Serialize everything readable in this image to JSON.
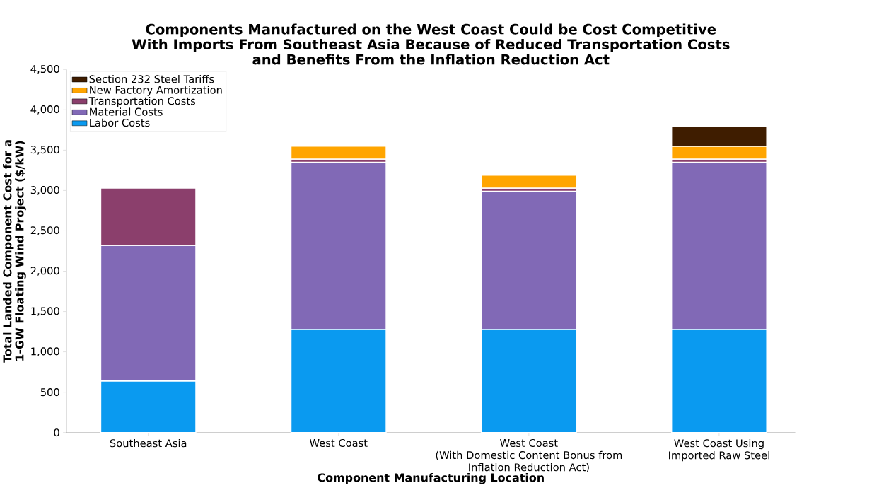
{
  "chart_data": {
    "type": "bar",
    "stacked": true,
    "title": "Components Manufactured on the West Coast Could be Cost Competitive\nWith Imports From Southeast Asia Because of Reduced Transportation Costs\nand Benefits From the Inflation Reduction Act",
    "xlabel": "Component Manufacturing Location",
    "ylabel": "Total Landed Component Cost for a\n1-GW Floating Wind Project ($/kW)",
    "categories": [
      "Southeast Asia",
      "West Coast",
      "West Coast\n(With Domestic Content Bonus from\nInflation Reduction Act)",
      "West Coast Using\nImported Raw Steel"
    ],
    "series": [
      {
        "name": "Labor Costs",
        "color": "#0a9af0",
        "values": [
          640,
          1280,
          1280,
          1280
        ]
      },
      {
        "name": "Material Costs",
        "color": "#8169b6",
        "values": [
          1680,
          2070,
          1710,
          2070
        ]
      },
      {
        "name": "Transportation Costs",
        "color": "#8b3f6c",
        "values": [
          710,
          40,
          40,
          40
        ]
      },
      {
        "name": "New Factory Amortization",
        "color": "#ffa500",
        "values": [
          null,
          160,
          160,
          160
        ]
      },
      {
        "name": "Section 232 Steel Tariffs",
        "color": "#3f1d00",
        "values": [
          null,
          null,
          null,
          240
        ]
      }
    ],
    "ylim": [
      0,
      4500
    ],
    "yticks": [
      0,
      500,
      {
        "value": 1000,
        "label": "1,000"
      },
      {
        "value": 1500,
        "label": "1,500"
      },
      {
        "value": 2000,
        "label": "2,000"
      },
      {
        "value": 2500,
        "label": "2,500"
      },
      {
        "value": 3000,
        "label": "3,000"
      },
      {
        "value": 3500,
        "label": "3,500"
      },
      {
        "value": 4000,
        "label": "4,000"
      },
      {
        "value": 4500,
        "label": "4,500"
      }
    ],
    "grid": false,
    "legend": "top left"
  }
}
